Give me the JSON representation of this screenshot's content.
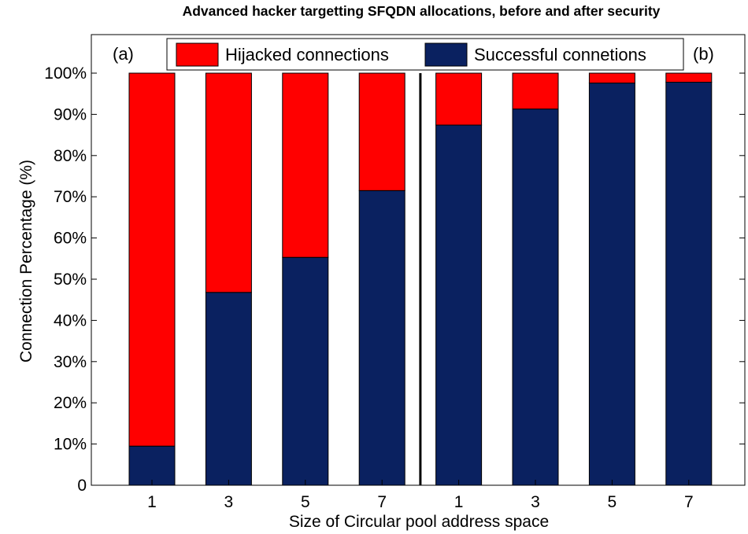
{
  "chart_data": {
    "type": "bar",
    "stacked": true,
    "title": "Advanced hacker targetting SFQDN allocations, before and after security",
    "xlabel": "Size of Circular pool address space",
    "ylabel": "Connection Percentage (%)",
    "categories": [
      "1",
      "3",
      "5",
      "7",
      "1",
      "3",
      "5",
      "7"
    ],
    "ylim": [
      0,
      100
    ],
    "yticks": [
      "0",
      "10%",
      "20%",
      "30%",
      "40%",
      "50%",
      "60%",
      "70%",
      "80%",
      "90%",
      "100%"
    ],
    "series": [
      {
        "name": "Successful connetions",
        "values": [
          9.5,
          46.8,
          55.3,
          71.5,
          87.4,
          91.3,
          97.6,
          97.8
        ]
      },
      {
        "name": "Hijacked connections",
        "values": [
          90.5,
          53.2,
          44.7,
          28.5,
          12.6,
          8.7,
          2.4,
          2.2
        ]
      }
    ],
    "legend": {
      "position": "top",
      "order": [
        "Hijacked connections",
        "Successful connetions"
      ]
    },
    "panel_labels": [
      "(a)",
      "(b)"
    ],
    "divider_after_category_index": 3,
    "grid": false,
    "colors": {
      "Hijacked connections": "#ff0000",
      "Successful connetions": "#0a2160"
    }
  }
}
